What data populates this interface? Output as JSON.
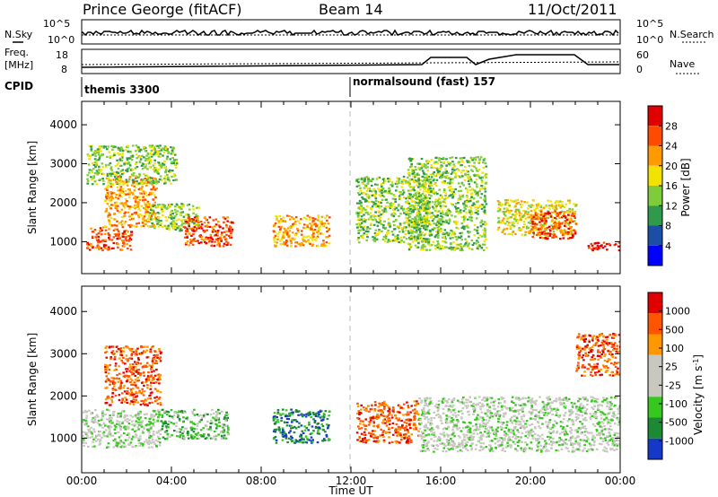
{
  "header": {
    "station": "Prince George (fitACF)",
    "beam": "Beam 14",
    "date": "11/Oct/2011"
  },
  "top_panels": {
    "nsky_label": "N.Sky",
    "nsky_ticks": [
      "10^5",
      "10^0"
    ],
    "nsearch_label": "N.Search",
    "nsearch_ticks": [
      "10^5",
      "10^0"
    ],
    "freq_label_1": "Freq.",
    "freq_label_2": "[MHz]",
    "freq_ticks": [
      "18",
      "8"
    ],
    "nave_label": "Nave",
    "nave_ticks": [
      "60",
      "0"
    ],
    "cpid_label": "CPID",
    "cpid_segments": [
      {
        "name": "themis 3300",
        "start": "00:00",
        "end": "12:00"
      },
      {
        "name": "normalsound (fast) 157",
        "start": "12:00",
        "end": "24:00"
      }
    ]
  },
  "chart_data": [
    {
      "type": "heatmap",
      "title": "",
      "quantity": "Power",
      "ylabel": "Slant Range [km]",
      "ylim": [
        180,
        4600
      ],
      "yticks": [
        "4000",
        "3000",
        "2000",
        "1000"
      ],
      "colorbar_label": "Power [dB]",
      "colorbar_ticks": [
        "28",
        "24",
        "20",
        "16",
        "12",
        "8",
        "4"
      ],
      "colorbar_colors": [
        "#0000ff",
        "#1c4ea8",
        "#2f9a4a",
        "#7fcc3a",
        "#f2e200",
        "#ff9b00",
        "#ff4a00",
        "#e00000"
      ],
      "xlim": [
        "00:00",
        "24:00"
      ],
      "scatter_blocks": [
        {
          "t": [
            0.2,
            2.2
          ],
          "r": [
            800,
            1400
          ],
          "level": 6
        },
        {
          "t": [
            1.0,
            3.3
          ],
          "r": [
            1400,
            2700
          ],
          "level": 5
        },
        {
          "t": [
            0.2,
            4.2
          ],
          "r": [
            2500,
            3500
          ],
          "level": 3
        },
        {
          "t": [
            3.0,
            5.2
          ],
          "r": [
            1300,
            2000
          ],
          "level": 3
        },
        {
          "t": [
            4.5,
            6.7
          ],
          "r": [
            900,
            1650
          ],
          "level": 6
        },
        {
          "t": [
            8.5,
            11.0
          ],
          "r": [
            900,
            1700
          ],
          "level": 5
        },
        {
          "t": [
            12.2,
            15.5
          ],
          "r": [
            1000,
            2700
          ],
          "level": 3
        },
        {
          "t": [
            14.5,
            18.0
          ],
          "r": [
            800,
            3200
          ],
          "level": 3
        },
        {
          "t": [
            18.5,
            22.0
          ],
          "r": [
            1200,
            2100
          ],
          "level": 4
        },
        {
          "t": [
            20.0,
            22.0
          ],
          "r": [
            1100,
            1800
          ],
          "level": 6
        },
        {
          "t": [
            22.5,
            24.0
          ],
          "r": [
            800,
            1000
          ],
          "level": 7
        }
      ]
    },
    {
      "type": "heatmap",
      "title": "",
      "quantity": "Velocity",
      "ylabel": "Slant Range [km]",
      "ylim": [
        180,
        4600
      ],
      "yticks": [
        "4000",
        "3000",
        "2000",
        "1000"
      ],
      "xlabel": "Time UT",
      "xticks": [
        "00:00",
        "04:00",
        "08:00",
        "12:00",
        "16:00",
        "20:00",
        "00:00"
      ],
      "xlim": [
        "00:00",
        "24:00"
      ],
      "colorbar_label": "Velocity [m s",
      "colorbar_label_sup": "-1",
      "colorbar_label_end": "]",
      "colorbar_ticks": [
        "1000",
        "500",
        "100",
        "25",
        "-25",
        "-100",
        "-500",
        "-1000"
      ],
      "colorbar_colors": [
        "#1638c8",
        "#1c8a34",
        "#36c81e",
        "#c8c8c0",
        "#c8c8c0",
        "#ff9800",
        "#ff5500",
        "#e00000"
      ],
      "scatter_blocks": [
        {
          "t": [
            0.0,
            3.5
          ],
          "r": [
            800,
            1700
          ],
          "level": 3
        },
        {
          "t": [
            1.0,
            3.5
          ],
          "r": [
            1800,
            3200
          ],
          "level": 6
        },
        {
          "t": [
            3.5,
            6.5
          ],
          "r": [
            1000,
            1700
          ],
          "level": 2
        },
        {
          "t": [
            8.5,
            11.0
          ],
          "r": [
            900,
            1700
          ],
          "level": 1
        },
        {
          "t": [
            12.2,
            15.0
          ],
          "r": [
            900,
            1900
          ],
          "level": 6
        },
        {
          "t": [
            15.0,
            24.0
          ],
          "r": [
            700,
            2000
          ],
          "level": 3
        },
        {
          "t": [
            22.0,
            24.0
          ],
          "r": [
            2500,
            3500
          ],
          "level": 6
        }
      ]
    }
  ]
}
